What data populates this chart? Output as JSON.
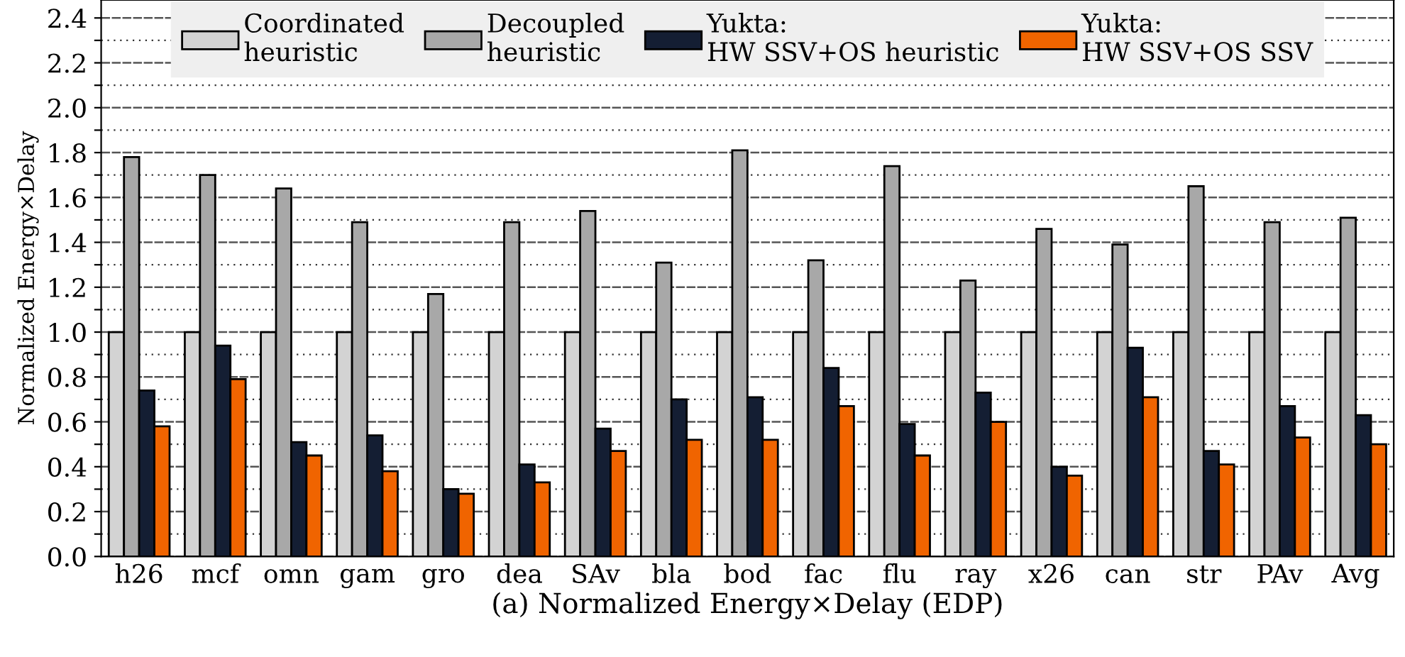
{
  "chart_data": {
    "type": "bar",
    "xlabel": "(a) Normalized Energy×Delay (EDP)",
    "ylabel": "Normalized Energy×Delay",
    "categories": [
      "h26",
      "mcf",
      "omn",
      "gam",
      "gro",
      "dea",
      "SAv",
      "bla",
      "bod",
      "fac",
      "flu",
      "ray",
      "x26",
      "can",
      "str",
      "PAv",
      "Avg"
    ],
    "series": [
      {
        "name": "Coordinated\nheuristic",
        "color": "#d3d3d3",
        "values": [
          1.0,
          1.0,
          1.0,
          1.0,
          1.0,
          1.0,
          1.0,
          1.0,
          1.0,
          1.0,
          1.0,
          1.0,
          1.0,
          1.0,
          1.0,
          1.0,
          1.0
        ]
      },
      {
        "name": "Decoupled\nheuristic",
        "color": "#a8a8a8",
        "values": [
          1.78,
          1.7,
          1.64,
          1.49,
          1.17,
          1.49,
          1.54,
          1.31,
          1.81,
          1.32,
          1.74,
          1.23,
          1.46,
          1.39,
          1.65,
          1.49,
          1.51
        ]
      },
      {
        "name": "Yukta:\nHW SSV+OS heuristic",
        "color": "#141e33",
        "values": [
          0.74,
          0.94,
          0.51,
          0.54,
          0.3,
          0.41,
          0.57,
          0.7,
          0.71,
          0.84,
          0.59,
          0.73,
          0.4,
          0.93,
          0.47,
          0.67,
          0.63
        ]
      },
      {
        "name": "Yukta:\nHW SSV+OS SSV",
        "color": "#f06400",
        "values": [
          0.58,
          0.79,
          0.45,
          0.38,
          0.28,
          0.33,
          0.47,
          0.52,
          0.52,
          0.67,
          0.45,
          0.6,
          0.36,
          0.71,
          0.41,
          0.53,
          0.5
        ]
      }
    ],
    "ylim": [
      0,
      2.48
    ],
    "yticks": [
      {
        "value": 0,
        "label": "0.0"
      },
      {
        "value": 0.1,
        "label": null
      },
      0.2,
      {
        "value": 0.3,
        "label": null
      },
      0.4,
      {
        "value": 0.5,
        "label": null
      },
      0.6,
      {
        "value": 0.7,
        "label": null
      },
      0.8,
      {
        "value": 0.9,
        "label": null
      },
      {
        "value": 1,
        "label": "1.0"
      },
      {
        "value": 1.1,
        "label": null
      },
      1.2,
      {
        "value": 1.3,
        "label": null
      },
      1.4,
      {
        "value": 1.5,
        "label": null
      },
      1.6,
      {
        "value": 1.7,
        "label": null
      },
      1.8,
      {
        "value": 1.9,
        "label": null
      },
      {
        "value": 2,
        "label": "2.0"
      },
      {
        "value": 2.1,
        "label": null
      },
      2.2,
      {
        "value": 2.3,
        "label": null
      },
      2.4
    ],
    "grid": "y",
    "legend": "top"
  }
}
